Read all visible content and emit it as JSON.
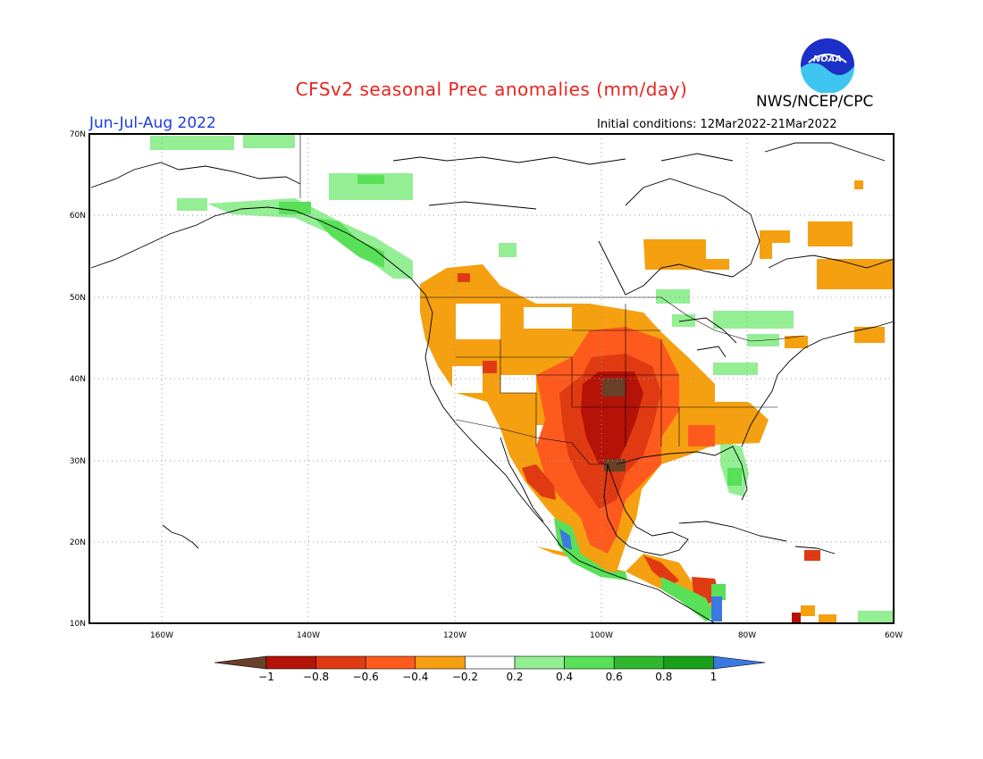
{
  "header": {
    "title": "CFSv2 seasonal Prec anomalies (mm/day)",
    "agency": "NWS/NCEP/CPC",
    "period": "Jun-Jul-Aug 2022",
    "initial_conditions": "Initial conditions: 12Mar2022-21Mar2022",
    "logo_text": "NOAA"
  },
  "map": {
    "lat_labels": [
      "70N",
      "60N",
      "50N",
      "40N",
      "30N",
      "20N",
      "10N"
    ],
    "lon_labels": [
      "160W",
      "140W",
      "120W",
      "100W",
      "80W",
      "60W"
    ]
  },
  "colorbar": {
    "tick_labels": [
      "-1",
      "-0.8",
      "-0.6",
      "-0.4",
      "-0.2",
      "0.2",
      "0.4",
      "0.6",
      "0.8",
      "1"
    ],
    "colors": [
      "#6b4028",
      "#b51208",
      "#e03a12",
      "#ff5a1e",
      "#f5a010",
      "#ffffff",
      "#94ee94",
      "#58e058",
      "#2fb82f",
      "#19a019",
      "#3b78e0"
    ]
  },
  "colors": {
    "title": "#e8251f",
    "period": "#1a3de0"
  }
}
